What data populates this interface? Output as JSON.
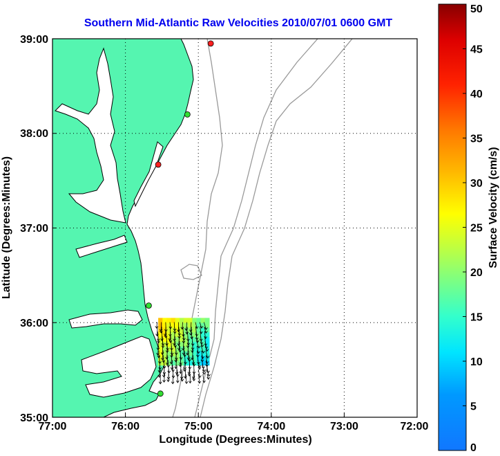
{
  "chart_data": {
    "type": "map",
    "title": "Southern Mid-Atlantic Raw Velocities 2010/07/01 0600 GMT",
    "xlabel": "Longitude (Degrees:Minutes)",
    "ylabel": "Latitude (Degrees:Minutes)",
    "xlim": [
      -77,
      -72
    ],
    "ylim": [
      35,
      39
    ],
    "x_ticks": [
      {
        "value": -77,
        "label": "77:00"
      },
      {
        "value": -76,
        "label": "76:00"
      },
      {
        "value": -75,
        "label": "75:00"
      },
      {
        "value": -74,
        "label": "74:00"
      },
      {
        "value": -73,
        "label": "73:00"
      },
      {
        "value": -72,
        "label": "72:00"
      }
    ],
    "y_ticks": [
      {
        "value": 35,
        "label": "35:00"
      },
      {
        "value": 36,
        "label": "36:00"
      },
      {
        "value": 37,
        "label": "37:00"
      },
      {
        "value": 38,
        "label": "38:00"
      },
      {
        "value": 39,
        "label": "39:00"
      }
    ],
    "grid": true,
    "grid_style": "dotted",
    "colors": {
      "land": "#55f5b0",
      "coast": "#000000",
      "bathymetry": "#999999",
      "water": "#ffffff"
    },
    "colorbar": {
      "label": "Surface Velocity (cm/s)",
      "min": 0,
      "max": 50,
      "ticks": [
        "0",
        "5",
        "10",
        "15",
        "20",
        "25",
        "30",
        "35",
        "40",
        "45",
        "50"
      ],
      "colormap": "jet"
    },
    "stations": [
      {
        "lon": -74.83,
        "lat": 38.95,
        "color": "#ff2020"
      },
      {
        "lon": -75.15,
        "lat": 38.2,
        "color": "#33dd33"
      },
      {
        "lon": -75.55,
        "lat": 37.67,
        "color": "#ff2020"
      },
      {
        "lon": -75.68,
        "lat": 36.18,
        "color": "#33dd33"
      },
      {
        "lon": -75.52,
        "lat": 35.25,
        "color": "#33dd33"
      }
    ],
    "velocity_field": {
      "lon_range": [
        -75.55,
        -74.85
      ],
      "lat_range": [
        35.55,
        36.05
      ],
      "speed_range_cm_s": [
        10,
        32
      ],
      "dominant_direction": "southward"
    }
  }
}
